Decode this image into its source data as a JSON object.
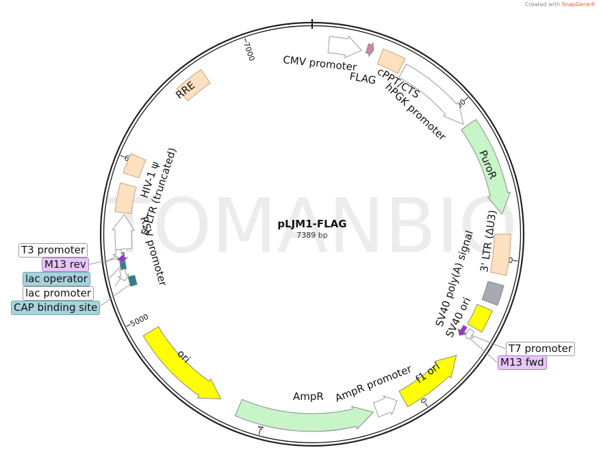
{
  "credit": {
    "prefix": "Created with ",
    "brand": "SnapGene®"
  },
  "watermark": "TOMANBIO",
  "plasmid": {
    "name": "pLJM1-FLAG",
    "length": "7389 bp"
  },
  "ticks": [
    "1000",
    "2000",
    "3000",
    "4000",
    "5000",
    "6000",
    "7000"
  ],
  "features": {
    "cmv": {
      "label": "CMV promoter",
      "color": "#ffffff"
    },
    "flag": {
      "label": "FLAG",
      "color": "#cc88aa"
    },
    "cppt": {
      "label": "cPPT/CTS",
      "color": "#ffe0c0"
    },
    "hpgk": {
      "label": "hPGK promoter",
      "color": "#ffffff"
    },
    "puror": {
      "label": "PuroR",
      "color": "#c8f5c8"
    },
    "ltr3": {
      "label": "3' LTR (ΔU3)",
      "color": "#ffe0c0"
    },
    "sv40pa": {
      "label": "SV40 poly(A) signal",
      "color": "#a7aab0"
    },
    "sv40ori": {
      "label": "SV40 ori",
      "color": "#ffff00"
    },
    "t7": {
      "label": "T7 promoter",
      "color": "#ffffff"
    },
    "m13fwd": {
      "label": "M13 fwd",
      "color": "#9933cc"
    },
    "f1ori": {
      "label": "f1 ori",
      "color": "#ffff00"
    },
    "amprp": {
      "label": "AmpR promoter",
      "color": "#ffffff"
    },
    "ampr": {
      "label": "AmpR",
      "color": "#c8f5c8"
    },
    "ori": {
      "label": "ori",
      "color": "#ffff00"
    },
    "cap": {
      "label": "CAP binding site",
      "color": "#2d7f8f"
    },
    "lacp": {
      "label": "lac promoter",
      "color": "#ffffff"
    },
    "laco": {
      "label": "lac operator",
      "color": "#2d7f8f"
    },
    "m13rev": {
      "label": "M13 rev",
      "color": "#9933cc"
    },
    "t3": {
      "label": "T3 promoter",
      "color": "#ffffff"
    },
    "rsv": {
      "label": "RSV promoter",
      "color": "#ffffff"
    },
    "ltr5": {
      "label": "5' LTR (truncated)",
      "color": "#ffe0c0"
    },
    "psi": {
      "label": "HIV-1 ψ",
      "color": "#ffe0c0"
    },
    "rre": {
      "label": "RRE",
      "color": "#ffe0c0"
    }
  },
  "callout_colors": {
    "purple": "#e6c6f7",
    "teal": "#a9d3dc"
  }
}
